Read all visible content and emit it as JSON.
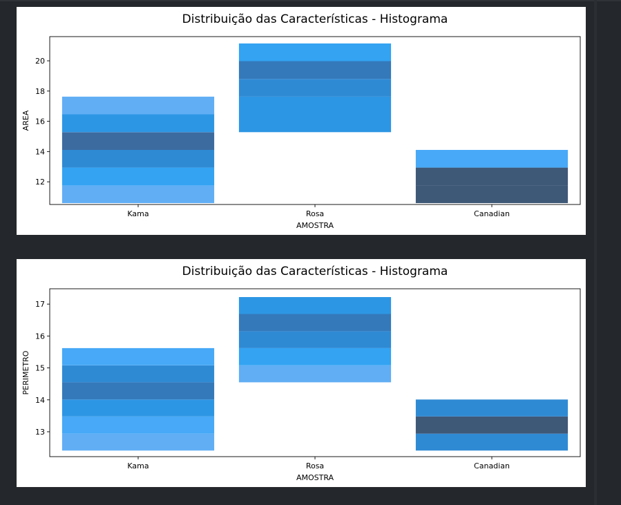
{
  "colors": {
    "page_background": "#24272b",
    "figure_background": "#ffffff",
    "shades": [
      "#9ec0ee",
      "#86b6f2",
      "#61aef5",
      "#47a9f7",
      "#33a3f2",
      "#2d96e4",
      "#2f8ad4",
      "#3479ba",
      "#3c6ba0",
      "#3e5878"
    ]
  },
  "chart_data": [
    {
      "type": "heatmap",
      "subtype": "bivariate histogram (categorical x)",
      "title": "Distribuição das Características - Histograma",
      "xlabel": "AMOSTRA",
      "ylabel": "AREA",
      "categories": [
        "Kama",
        "Rosa",
        "Canadian"
      ],
      "yticks": [
        12,
        14,
        16,
        18,
        20
      ],
      "ylim": [
        10.5,
        21.6
      ],
      "bin_edges": [
        10.59,
        11.76,
        12.94,
        14.11,
        15.28,
        16.46,
        17.63,
        18.8,
        19.98,
        21.15
      ],
      "series": [
        {
          "name": "Kama",
          "bins": [
            {
              "y0": 10.59,
              "y1": 11.76,
              "count": 6
            },
            {
              "y0": 11.76,
              "y1": 12.94,
              "count": 10
            },
            {
              "y0": 12.94,
              "y1": 14.11,
              "count": 17
            },
            {
              "y0": 14.11,
              "y1": 15.28,
              "count": 20
            },
            {
              "y0": 15.28,
              "y1": 16.46,
              "count": 13
            },
            {
              "y0": 16.46,
              "y1": 17.63,
              "count": 6
            }
          ]
        },
        {
          "name": "Rosa",
          "bins": [
            {
              "y0": 15.28,
              "y1": 16.46,
              "count": 12
            },
            {
              "y0": 16.46,
              "y1": 17.63,
              "count": 13
            },
            {
              "y0": 17.63,
              "y1": 18.8,
              "count": 16
            },
            {
              "y0": 18.8,
              "y1": 19.98,
              "count": 18
            },
            {
              "y0": 19.98,
              "y1": 21.15,
              "count": 11
            }
          ]
        },
        {
          "name": "Canadian",
          "bins": [
            {
              "y0": 10.59,
              "y1": 11.76,
              "count": 24
            },
            {
              "y0": 11.76,
              "y1": 12.94,
              "count": 24
            },
            {
              "y0": 12.94,
              "y1": 14.11,
              "count": 8
            }
          ]
        }
      ],
      "grid": false
    },
    {
      "type": "heatmap",
      "subtype": "bivariate histogram (categorical x)",
      "title": "Distribuição das Características - Histograma",
      "xlabel": "AMOSTRA",
      "ylabel": "PERIMETRO",
      "categories": [
        "Kama",
        "Rosa",
        "Canadian"
      ],
      "yticks": [
        13,
        14,
        15,
        16,
        17
      ],
      "ylim": [
        12.22,
        17.48
      ],
      "bin_edges": [
        12.41,
        12.94,
        13.48,
        14.01,
        14.55,
        15.08,
        15.62,
        16.15,
        16.69,
        17.22
      ],
      "series": [
        {
          "name": "Kama",
          "bins": [
            {
              "y0": 12.41,
              "y1": 12.94,
              "count": 6
            },
            {
              "y0": 12.94,
              "y1": 13.48,
              "count": 7
            },
            {
              "y0": 13.48,
              "y1": 14.01,
              "count": 14
            },
            {
              "y0": 14.01,
              "y1": 14.55,
              "count": 19
            },
            {
              "y0": 14.55,
              "y1": 15.08,
              "count": 16
            },
            {
              "y0": 15.08,
              "y1": 15.62,
              "count": 9
            }
          ]
        },
        {
          "name": "Rosa",
          "bins": [
            {
              "y0": 14.55,
              "y1": 15.08,
              "count": 6
            },
            {
              "y0": 15.08,
              "y1": 15.62,
              "count": 10
            },
            {
              "y0": 15.62,
              "y1": 16.15,
              "count": 15
            },
            {
              "y0": 16.15,
              "y1": 16.69,
              "count": 19
            },
            {
              "y0": 16.69,
              "y1": 17.22,
              "count": 12
            }
          ]
        },
        {
          "name": "Canadian",
          "bins": [
            {
              "y0": 12.41,
              "y1": 12.94,
              "count": 15
            },
            {
              "y0": 12.94,
              "y1": 13.48,
              "count": 24
            },
            {
              "y0": 13.48,
              "y1": 14.01,
              "count": 15
            }
          ]
        }
      ],
      "grid": false
    }
  ]
}
